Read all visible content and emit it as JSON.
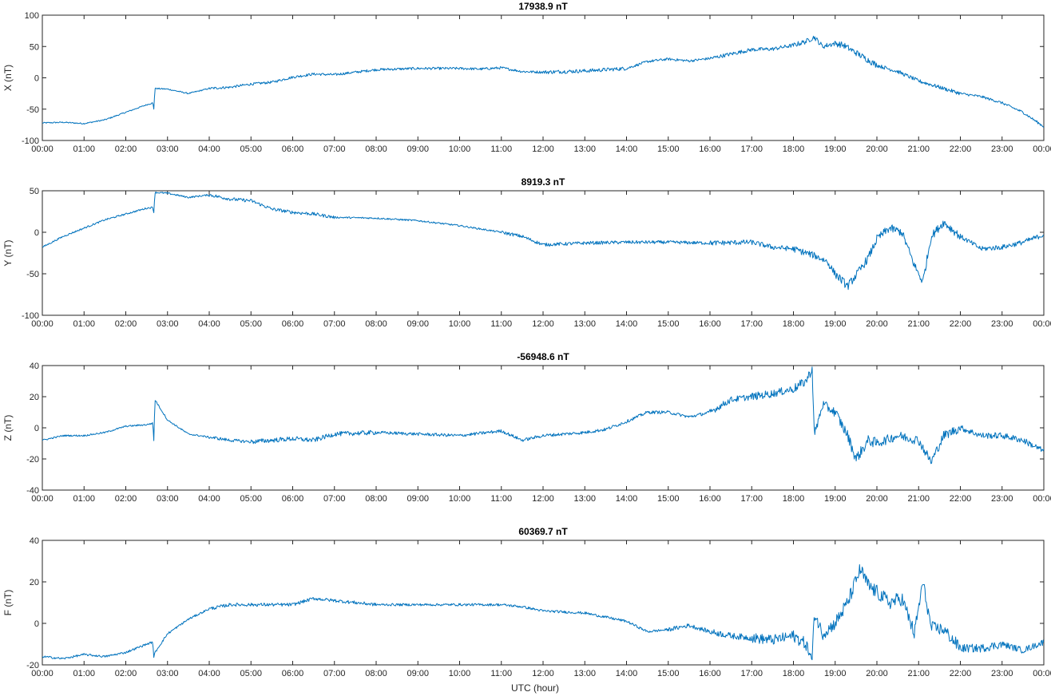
{
  "figure": {
    "xlabel": "UTC (hour)",
    "line_color": "#0072bd"
  },
  "chart_data": [
    {
      "type": "line",
      "title": "17938.9 nT",
      "ylabel": "X (nT)",
      "xlim": [
        0,
        24
      ],
      "ylim": [
        -100,
        100
      ],
      "yticks": [
        -100,
        -50,
        0,
        50,
        100
      ],
      "xtick_labels": [
        "00:00",
        "01:00",
        "02:00",
        "03:00",
        "04:00",
        "05:00",
        "06:00",
        "07:00",
        "08:00",
        "09:00",
        "10:00",
        "11:00",
        "12:00",
        "13:00",
        "14:00",
        "15:00",
        "16:00",
        "17:00",
        "18:00",
        "19:00",
        "20:00",
        "21:00",
        "22:00",
        "23:00",
        "00:00"
      ],
      "grid": false,
      "noise": [
        1,
        1,
        1,
        1,
        2,
        2,
        2,
        2,
        2,
        2,
        2,
        2,
        3,
        3,
        2,
        2,
        3,
        3,
        4,
        5,
        3,
        3,
        2,
        2,
        2
      ],
      "series": [
        {
          "x": [
            0,
            0.5,
            1.0,
            1.5,
            2.0,
            2.5,
            2.65,
            2.67,
            2.7,
            3.0,
            3.5,
            4.0,
            4.5,
            5.0,
            5.5,
            6.0,
            6.5,
            7.0,
            8.0,
            9.0,
            10.0,
            10.5,
            11.0,
            11.5,
            12.0,
            13.0,
            14.0,
            14.5,
            15.0,
            15.5,
            16.0,
            16.5,
            17.0,
            17.5,
            18.0,
            18.3,
            18.5,
            18.7,
            19.0,
            19.2,
            19.5,
            20.0,
            20.5,
            21.0,
            21.5,
            22.0,
            22.5,
            23.0,
            23.5,
            24.0
          ],
          "y": [
            -72,
            -71,
            -73,
            -67,
            -55,
            -43,
            -40,
            -52,
            -17,
            -18,
            -25,
            -17,
            -15,
            -10,
            -7,
            1,
            6,
            5,
            13,
            15,
            15,
            14,
            16,
            10,
            9,
            11,
            15,
            26,
            30,
            27,
            31,
            38,
            45,
            46,
            52,
            58,
            65,
            50,
            55,
            52,
            40,
            20,
            10,
            -5,
            -15,
            -25,
            -30,
            -40,
            -55,
            -78
          ]
        }
      ]
    },
    {
      "type": "line",
      "title": "8919.3 nT",
      "ylabel": "Y (nT)",
      "xlim": [
        0,
        24
      ],
      "ylim": [
        -100,
        50
      ],
      "yticks": [
        -100,
        -50,
        0,
        50
      ],
      "xtick_labels": [
        "00:00",
        "01:00",
        "02:00",
        "03:00",
        "04:00",
        "05:00",
        "06:00",
        "07:00",
        "08:00",
        "09:00",
        "10:00",
        "11:00",
        "12:00",
        "13:00",
        "14:00",
        "15:00",
        "16:00",
        "17:00",
        "18:00",
        "19:00",
        "20:00",
        "21:00",
        "22:00",
        "23:00",
        "00:00"
      ],
      "grid": false,
      "noise": [
        1,
        1,
        1,
        1,
        2,
        2,
        2,
        1,
        1,
        1,
        1,
        2,
        2,
        2,
        2,
        2,
        3,
        3,
        4,
        5,
        5,
        5,
        3,
        3,
        2
      ],
      "series": [
        {
          "x": [
            0,
            0.5,
            1.0,
            1.5,
            2.0,
            2.5,
            2.65,
            2.67,
            2.7,
            3.0,
            3.5,
            4.0,
            4.5,
            5.0,
            5.5,
            6.0,
            6.5,
            7.0,
            8.0,
            9.0,
            10.0,
            11.0,
            11.5,
            12.0,
            13.0,
            14.0,
            15.0,
            16.0,
            17.0,
            17.5,
            18.0,
            18.5,
            18.8,
            19.0,
            19.3,
            19.6,
            19.8,
            20.0,
            20.3,
            20.6,
            20.9,
            21.1,
            21.3,
            21.6,
            22.0,
            22.5,
            23.0,
            23.5,
            24.0
          ],
          "y": [
            -18,
            -5,
            5,
            15,
            22,
            29,
            30,
            22,
            48,
            47,
            42,
            45,
            40,
            38,
            28,
            24,
            22,
            18,
            17,
            14,
            8,
            0,
            -5,
            -15,
            -13,
            -12,
            -12,
            -13,
            -12,
            -18,
            -20,
            -28,
            -35,
            -50,
            -65,
            -45,
            -30,
            -8,
            5,
            0,
            -40,
            -60,
            -5,
            12,
            -5,
            -20,
            -18,
            -12,
            -3
          ]
        }
      ]
    },
    {
      "type": "line",
      "title": "-56948.6 nT",
      "ylabel": "Z (nT)",
      "xlim": [
        0,
        24
      ],
      "ylim": [
        -40,
        40
      ],
      "yticks": [
        -40,
        -20,
        0,
        20,
        40
      ],
      "xtick_labels": [
        "00:00",
        "01:00",
        "02:00",
        "03:00",
        "04:00",
        "05:00",
        "06:00",
        "07:00",
        "08:00",
        "09:00",
        "10:00",
        "11:00",
        "12:00",
        "13:00",
        "14:00",
        "15:00",
        "16:00",
        "17:00",
        "18:00",
        "19:00",
        "20:00",
        "21:00",
        "22:00",
        "23:00",
        "00:00"
      ],
      "grid": false,
      "noise": [
        0.5,
        0.5,
        0.5,
        0.5,
        1,
        1.5,
        1.5,
        1.5,
        1,
        1,
        1,
        1,
        1,
        1,
        1,
        1,
        2,
        2.5,
        3,
        3.5,
        3,
        3,
        2,
        2,
        1.5
      ],
      "series": [
        {
          "x": [
            0,
            0.5,
            1.0,
            1.5,
            2.0,
            2.5,
            2.65,
            2.67,
            2.7,
            3.0,
            3.5,
            4.0,
            4.5,
            5.0,
            5.5,
            6.0,
            6.5,
            7.0,
            8.0,
            9.0,
            10.0,
            11.0,
            11.5,
            12.0,
            13.0,
            13.5,
            14.0,
            14.5,
            15.0,
            15.5,
            16.0,
            16.5,
            17.0,
            17.5,
            18.0,
            18.3,
            18.45,
            18.5,
            18.7,
            19.0,
            19.3,
            19.5,
            19.8,
            20.0,
            20.5,
            21.0,
            21.3,
            21.6,
            22.0,
            22.5,
            23.0,
            23.5,
            24.0
          ],
          "y": [
            -8,
            -5,
            -5,
            -3,
            1,
            2,
            3,
            -10,
            18,
            5,
            -4,
            -6,
            -8,
            -9,
            -8,
            -7,
            -8,
            -4,
            -3,
            -4,
            -5,
            -2,
            -8,
            -5,
            -3,
            -1,
            4,
            10,
            10,
            7,
            10,
            18,
            20,
            22,
            25,
            30,
            38,
            -5,
            15,
            10,
            -5,
            -20,
            -8,
            -10,
            -5,
            -8,
            -22,
            -5,
            0,
            -5,
            -5,
            -8,
            -15
          ]
        }
      ]
    },
    {
      "type": "line",
      "title": "60369.7 nT",
      "ylabel": "F (nT)",
      "xlim": [
        0,
        24
      ],
      "ylim": [
        -20,
        40
      ],
      "yticks": [
        -20,
        0,
        20,
        40
      ],
      "xtick_labels": [
        "00:00",
        "01:00",
        "02:00",
        "03:00",
        "04:00",
        "05:00",
        "06:00",
        "07:00",
        "08:00",
        "09:00",
        "10:00",
        "11:00",
        "12:00",
        "13:00",
        "14:00",
        "15:00",
        "16:00",
        "17:00",
        "18:00",
        "19:00",
        "20:00",
        "21:00",
        "22:00",
        "23:00",
        "00:00"
      ],
      "grid": false,
      "noise": [
        0.5,
        0.5,
        0.5,
        0.5,
        0.8,
        0.8,
        0.8,
        0.8,
        0.6,
        0.6,
        0.6,
        0.6,
        0.6,
        0.6,
        0.6,
        1,
        1.5,
        2.5,
        3,
        3.5,
        3.5,
        3,
        2,
        1.5,
        1.5
      ],
      "series": [
        {
          "x": [
            0,
            0.5,
            1.0,
            1.5,
            2.0,
            2.5,
            2.65,
            2.67,
            2.7,
            3.0,
            3.5,
            4.0,
            4.5,
            5.0,
            5.5,
            6.0,
            6.5,
            7.0,
            8.0,
            9.0,
            10.0,
            11.0,
            11.5,
            12.0,
            13.0,
            13.5,
            14.0,
            14.5,
            15.0,
            15.5,
            16.0,
            16.5,
            17.0,
            17.5,
            18.0,
            18.3,
            18.45,
            18.5,
            18.7,
            19.0,
            19.3,
            19.6,
            19.8,
            20.0,
            20.3,
            20.6,
            20.9,
            21.1,
            21.3,
            21.6,
            22.0,
            22.5,
            23.0,
            23.5,
            24.0
          ],
          "y": [
            -16,
            -17,
            -15,
            -16,
            -14,
            -10,
            -9,
            -17,
            -14,
            -5,
            2,
            7,
            9,
            9,
            9,
            9,
            12,
            11,
            9,
            9,
            9,
            9,
            8,
            6,
            5,
            3,
            1,
            -4,
            -3,
            -1,
            -4,
            -6,
            -7,
            -8,
            -6,
            -10,
            -18,
            5,
            -5,
            0,
            10,
            26,
            18,
            15,
            10,
            12,
            -5,
            20,
            -2,
            -3,
            -12,
            -12,
            -10,
            -13,
            -9
          ]
        }
      ]
    }
  ]
}
